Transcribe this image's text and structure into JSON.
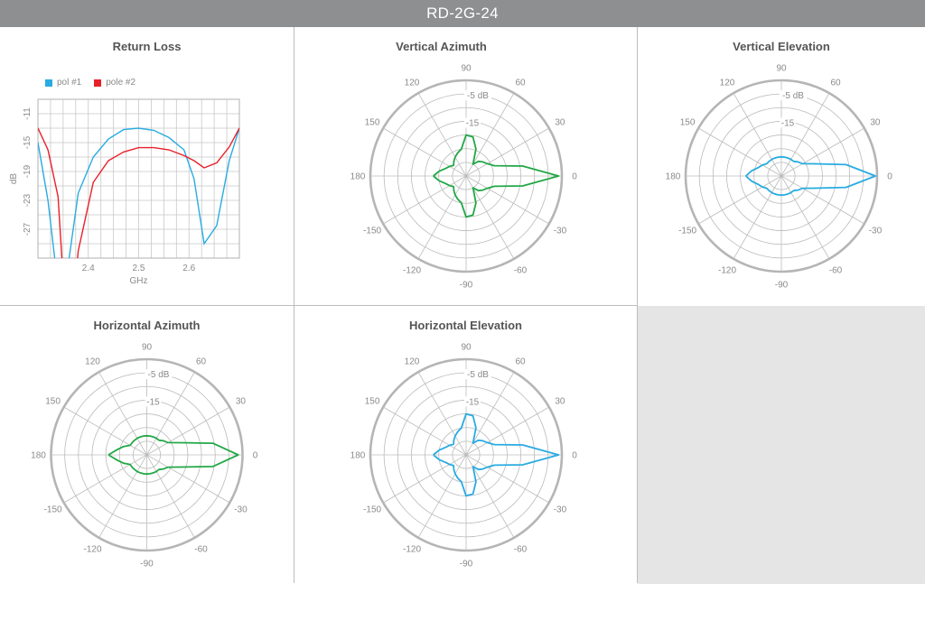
{
  "header": {
    "title": "RD-2G-24"
  },
  "colors": {
    "pol1": "#29abe2",
    "pol2": "#e8202a",
    "green": "#22a846",
    "blue": "#29abe2",
    "grid": "#bbbbbb",
    "outer": "#b5b5b5"
  },
  "polar_labels": {
    "angles": [
      "90",
      "60",
      "30",
      "0",
      "-30",
      "-60",
      "-90",
      "-120",
      "-150",
      "180",
      "150",
      "120"
    ],
    "rings": [
      "-5 dB",
      "-15"
    ]
  },
  "chart_data": [
    {
      "type": "line",
      "title": "Return Loss",
      "xlabel": "GHz",
      "ylabel": "dB",
      "xlim": [
        2.3,
        2.7
      ],
      "ylim": [
        -31,
        -9
      ],
      "xticks": [
        "2.4",
        "2.5",
        "2.6"
      ],
      "yticks": [
        "-11",
        "-15",
        "-19",
        "-23",
        "-27"
      ],
      "grid": true,
      "legend_position": "top-left",
      "x": [
        2.3,
        2.32,
        2.34,
        2.36,
        2.38,
        2.41,
        2.44,
        2.47,
        2.5,
        2.53,
        2.56,
        2.59,
        2.61,
        2.63,
        2.655,
        2.68,
        2.7
      ],
      "series": [
        {
          "name": "pol #1",
          "values": [
            -15,
            -23,
            -35,
            -32,
            -22,
            -17,
            -14.5,
            -13.2,
            -13.0,
            -13.3,
            -14.3,
            -16.0,
            -20.0,
            -29.0,
            -26.5,
            -17.5,
            -13.0
          ]
        },
        {
          "name": "pole #2",
          "values": [
            -13.0,
            -16.0,
            -22.5,
            -45,
            -30,
            -20.5,
            -17.5,
            -16.3,
            -15.7,
            -15.7,
            -16.0,
            -16.8,
            -17.5,
            -18.5,
            -17.8,
            -15.6,
            -13.0
          ]
        }
      ]
    },
    {
      "type": "polar",
      "title": "Vertical Azimuth",
      "color": "green",
      "angles": [
        -180,
        -170,
        -160,
        -150,
        -140,
        -130,
        -120,
        -110,
        -100,
        -90,
        -80,
        -70,
        -60,
        -50,
        -40,
        -30,
        -20,
        -10,
        0,
        10,
        20,
        30,
        40,
        50,
        60,
        70,
        80,
        90,
        100,
        110,
        120,
        130,
        140,
        150,
        160,
        170,
        180
      ],
      "values_db": [
        -23,
        -25,
        -27,
        -28,
        -29,
        -28,
        -27,
        -26,
        -25,
        -20,
        -20.5,
        -24.5,
        -30,
        -28,
        -27,
        -26,
        -24,
        -14,
        -1.2,
        -14,
        -24,
        -26,
        -27,
        -28,
        -30,
        -24.5,
        -20.5,
        -20,
        -25,
        -26,
        -27,
        -28,
        -29,
        -28,
        -27,
        -25,
        -23
      ]
    },
    {
      "type": "polar",
      "title": "Vertical Elevation",
      "color": "blue",
      "angles": [
        -180,
        -170,
        -160,
        -150,
        -140,
        -130,
        -120,
        -110,
        -100,
        -90,
        -80,
        -70,
        -60,
        -50,
        -40,
        -30,
        -20,
        -10,
        0,
        10,
        20,
        30,
        40,
        50,
        60,
        70,
        80,
        90,
        100,
        110,
        120,
        130,
        140,
        150,
        160,
        170,
        180
      ],
      "values_db": [
        -22,
        -24,
        -26,
        -27,
        -28,
        -28,
        -28,
        -28,
        -28,
        -28,
        -28,
        -28,
        -28,
        -28,
        -27,
        -26,
        -22,
        -11,
        -0.6,
        -11,
        -22,
        -26,
        -27,
        -28,
        -28,
        -28,
        -28,
        -28,
        -28,
        -28,
        -28,
        -28,
        -28,
        -27,
        -26,
        -24,
        -22
      ]
    },
    {
      "type": "polar",
      "title": "Horizontal Azimuth",
      "color": "green",
      "angles": [
        -180,
        -170,
        -160,
        -150,
        -140,
        -130,
        -120,
        -110,
        -100,
        -90,
        -80,
        -70,
        -60,
        -50,
        -40,
        -30,
        -20,
        -10,
        0,
        10,
        20,
        30,
        40,
        50,
        60,
        70,
        80,
        90,
        100,
        110,
        120,
        130,
        140,
        150,
        160,
        170,
        180
      ],
      "values_db": [
        -21,
        -24,
        -26,
        -28,
        -28,
        -28,
        -28,
        -28,
        -28,
        -28,
        -28,
        -28,
        -28,
        -28,
        -27,
        -26,
        -22,
        -10.5,
        -1.6,
        -10.5,
        -22,
        -26,
        -27,
        -28,
        -28,
        -28,
        -28,
        -28,
        -28,
        -28,
        -28,
        -28,
        -28,
        -28,
        -26,
        -24,
        -21
      ]
    },
    {
      "type": "polar",
      "title": "Horizontal Elevation",
      "color": "blue",
      "angles": [
        -180,
        -170,
        -160,
        -150,
        -140,
        -130,
        -120,
        -110,
        -100,
        -90,
        -80,
        -70,
        -60,
        -50,
        -40,
        -30,
        -20,
        -10,
        0,
        10,
        20,
        30,
        40,
        50,
        60,
        70,
        80,
        90,
        100,
        110,
        120,
        130,
        140,
        150,
        160,
        170,
        180
      ],
      "values_db": [
        -23,
        -25,
        -27,
        -28,
        -29,
        -28,
        -27,
        -26,
        -25,
        -20,
        -20.5,
        -24.5,
        -30,
        -28,
        -27,
        -26,
        -24,
        -14,
        -1.2,
        -14,
        -24,
        -26,
        -27,
        -28,
        -30,
        -24.5,
        -20.5,
        -20,
        -25,
        -26,
        -27,
        -28,
        -29,
        -28,
        -27,
        -25,
        -23
      ]
    }
  ]
}
